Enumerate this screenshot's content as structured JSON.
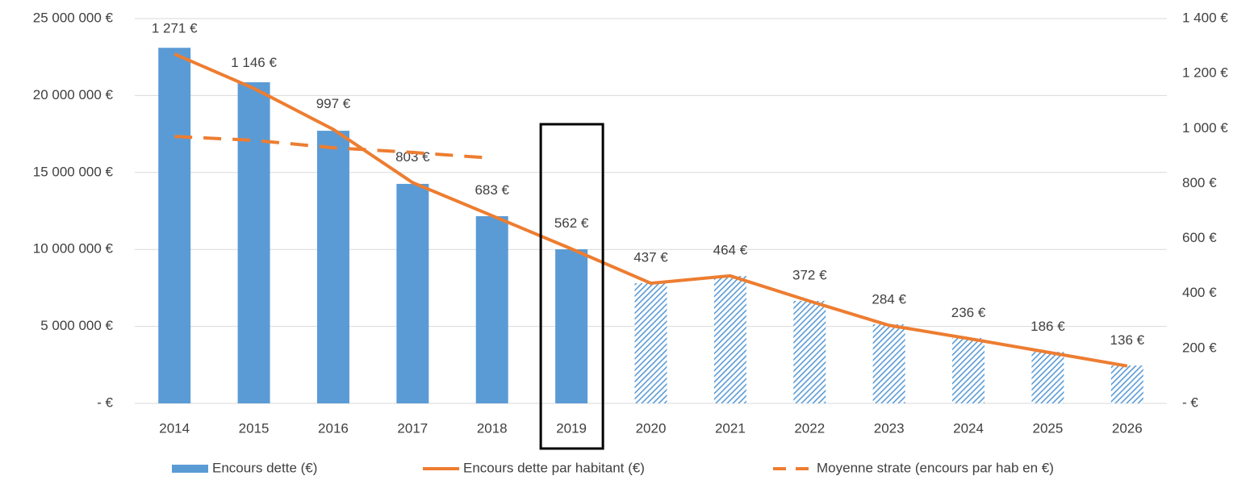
{
  "chart_data": {
    "type": "bar",
    "categories": [
      "2014",
      "2015",
      "2016",
      "2017",
      "2018",
      "2019",
      "2020",
      "2021",
      "2022",
      "2023",
      "2024",
      "2025",
      "2026"
    ],
    "series": [
      {
        "name": "Encours dette (€)",
        "type": "bar",
        "color": "#5b9bd5",
        "values": [
          23100000,
          20860000,
          17710000,
          14260000,
          12160000,
          10010000,
          7810000,
          8280000,
          6660000,
          5140000,
          4250000,
          3350000,
          2460000
        ],
        "hatched": [
          false,
          false,
          false,
          false,
          false,
          false,
          true,
          true,
          true,
          true,
          true,
          true,
          true
        ]
      },
      {
        "name": "Encours dette par habitant (€)",
        "type": "line",
        "axis": "y2",
        "color": "#ed7d31",
        "values": [
          1271,
          1146,
          997,
          803,
          683,
          562,
          437,
          464,
          372,
          284,
          236,
          186,
          136
        ],
        "value_labels": [
          "1 271 €",
          "1 146 €",
          "997 €",
          "803 €",
          "683 €",
          "562 €",
          "437 €",
          "464 €",
          "372 €",
          "284 €",
          "236 €",
          "186 €",
          "136 €"
        ]
      },
      {
        "name": "Moyenne strate (encours par hab en €)",
        "type": "line",
        "axis": "y2",
        "color": "#ed7d31",
        "dashed": true,
        "values": [
          971,
          957,
          930,
          913,
          892,
          null,
          null,
          null,
          null,
          null,
          null,
          null,
          null
        ]
      }
    ],
    "highlight": "2019",
    "ylim": [
      0,
      25000000
    ],
    "yticks": [
      {
        "value": 0,
        "label": "-  €"
      },
      {
        "value": 5000000,
        "label": "5 000 000 €"
      },
      {
        "value": 10000000,
        "label": "10 000 000 €"
      },
      {
        "value": 15000000,
        "label": "15 000 000 €"
      },
      {
        "value": 20000000,
        "label": "20 000 000 €"
      },
      {
        "value": 25000000,
        "label": "25 000 000 €"
      }
    ],
    "y2lim": [
      0,
      1400
    ],
    "y2ticks": [
      {
        "value": 0,
        "label": "-  €"
      },
      {
        "value": 200,
        "label": "200 €"
      },
      {
        "value": 400,
        "label": "400 €"
      },
      {
        "value": 600,
        "label": "600 €"
      },
      {
        "value": 800,
        "label": "800 €"
      },
      {
        "value": 1000,
        "label": "1 000 €"
      },
      {
        "value": 1200,
        "label": "1 200 €"
      },
      {
        "value": 1400,
        "label": "1 400 €"
      }
    ],
    "grid": true,
    "legend": "bottom"
  }
}
